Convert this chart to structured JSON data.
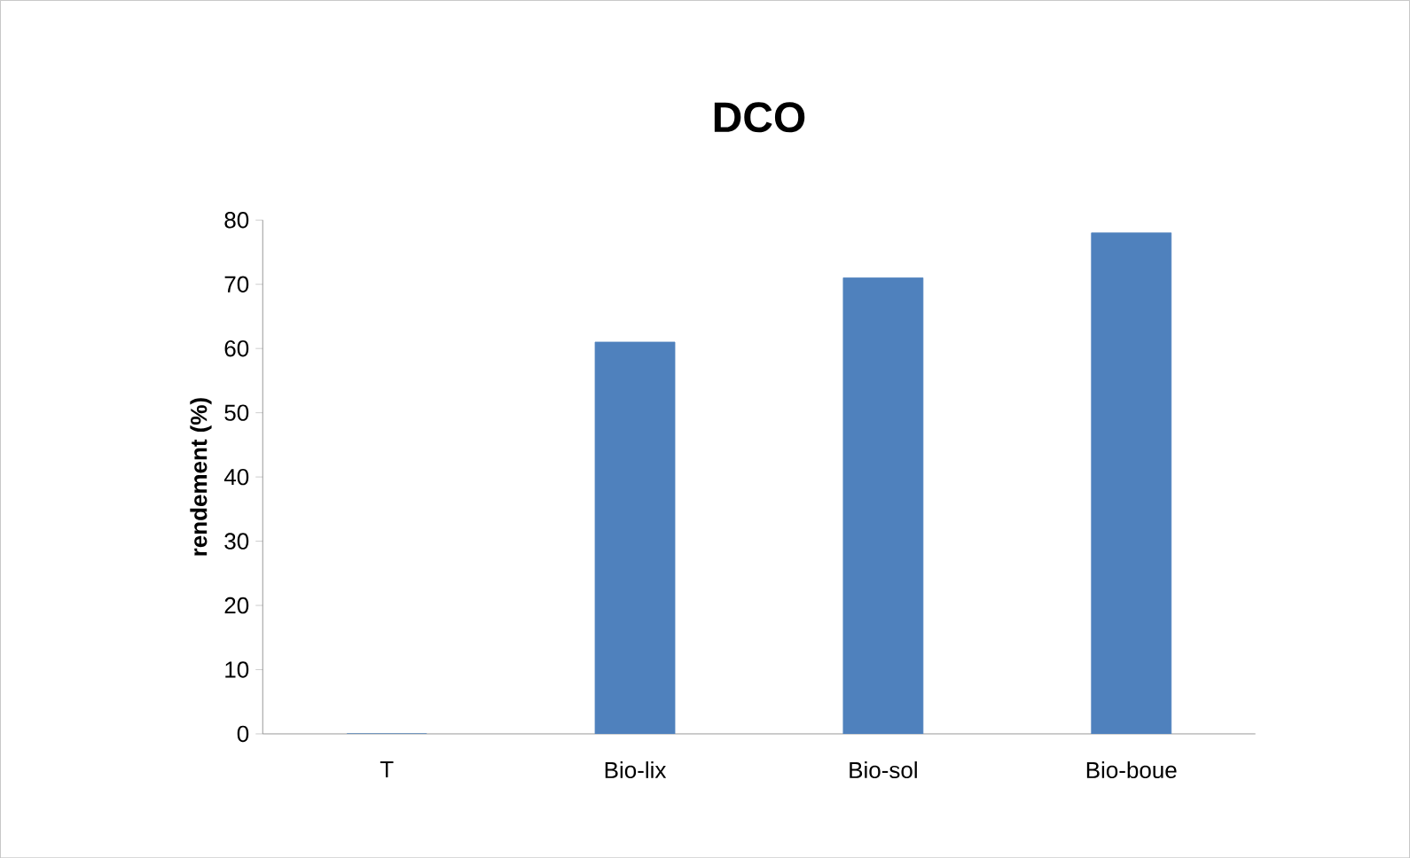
{
  "chart_data": {
    "type": "bar",
    "title": "DCO",
    "ylabel": "rendement (%)",
    "categories": [
      "T",
      "Bio-lix",
      "Bio-sol",
      "Bio-boue"
    ],
    "values": [
      0,
      61,
      71,
      78
    ],
    "color": "#4f81bd",
    "ylim": [
      0,
      80
    ],
    "yticks": [
      0,
      10,
      20,
      30,
      40,
      50,
      60,
      70,
      80
    ],
    "grid": false
  }
}
